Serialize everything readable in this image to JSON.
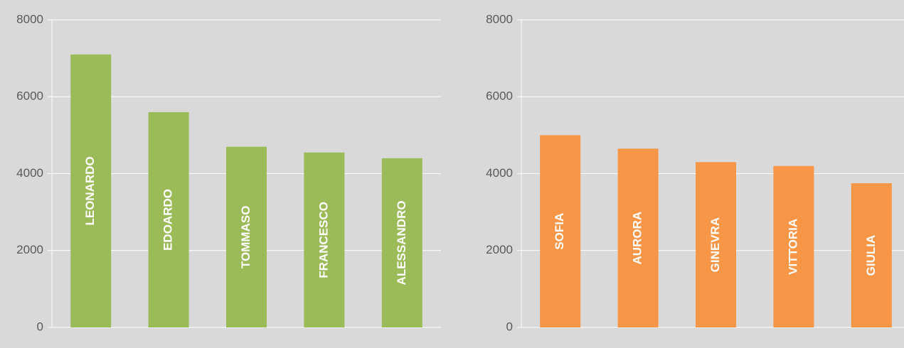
{
  "chart_data": [
    {
      "type": "bar",
      "categories": [
        "LEONARDO",
        "EDOARDO",
        "TOMMASO",
        "FRANCESCO",
        "ALESSANDRO"
      ],
      "values": [
        7100,
        5600,
        4700,
        4550,
        4400
      ],
      "color": "#9bbb59",
      "ylim": [
        0,
        8000
      ],
      "yticks": [
        0,
        2000,
        4000,
        6000,
        8000
      ],
      "grid": true
    },
    {
      "type": "bar",
      "categories": [
        "SOFIA",
        "AURORA",
        "GINEVRA",
        "VITTORIA",
        "GIULIA"
      ],
      "values": [
        5000,
        4650,
        4300,
        4200,
        3750
      ],
      "color": "#f79646",
      "ylim": [
        0,
        8000
      ],
      "yticks": [
        0,
        2000,
        4000,
        6000,
        8000
      ],
      "grid": true
    }
  ]
}
